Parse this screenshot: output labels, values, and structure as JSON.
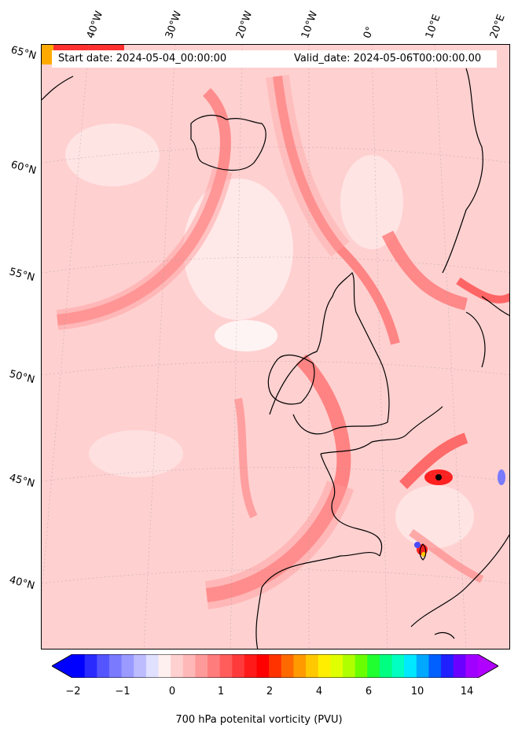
{
  "header": {
    "start_date": "Start date: 2024-05-04_00:00:00",
    "valid_date": "Valid_date: 2024-05-06T00:00:00.00"
  },
  "lon_labels": [
    "40°W",
    "30°W",
    "20°W",
    "10°W",
    "0°",
    "10°E",
    "20°E"
  ],
  "lat_labels": [
    "65°N",
    "60°N",
    "55°N",
    "50°N",
    "45°N",
    "40°N"
  ],
  "colorbar": {
    "label": "700 hPa potenital vorticity (PVU)",
    "ticks": [
      "−2",
      "−1",
      "0",
      "1",
      "2",
      "4",
      "6",
      "10",
      "14"
    ],
    "colors": [
      "#0000ff",
      "#2a2aff",
      "#5555ff",
      "#7a7aff",
      "#9a9aff",
      "#bcbcff",
      "#e0e0ff",
      "#fff0f0",
      "#ffd0d0",
      "#ffb8b8",
      "#ff9a9a",
      "#ff7c7c",
      "#ff5c5c",
      "#ff3a3a",
      "#ff1a1a",
      "#ff0000",
      "#ff3300",
      "#ff6a00",
      "#ff9a00",
      "#ffc800",
      "#ffee00",
      "#e0ff00",
      "#b0ff00",
      "#6aff00",
      "#20ff30",
      "#00ff80",
      "#00ffc0",
      "#00e8ff",
      "#00a8ff",
      "#0060ff",
      "#2020ff",
      "#6a00ff",
      "#a000ff"
    ],
    "under_color": "#0000ff",
    "over_color": "#b000ff"
  },
  "map": {
    "field": "700 hPa potential vorticity",
    "background_color": "#ffd0d0"
  }
}
